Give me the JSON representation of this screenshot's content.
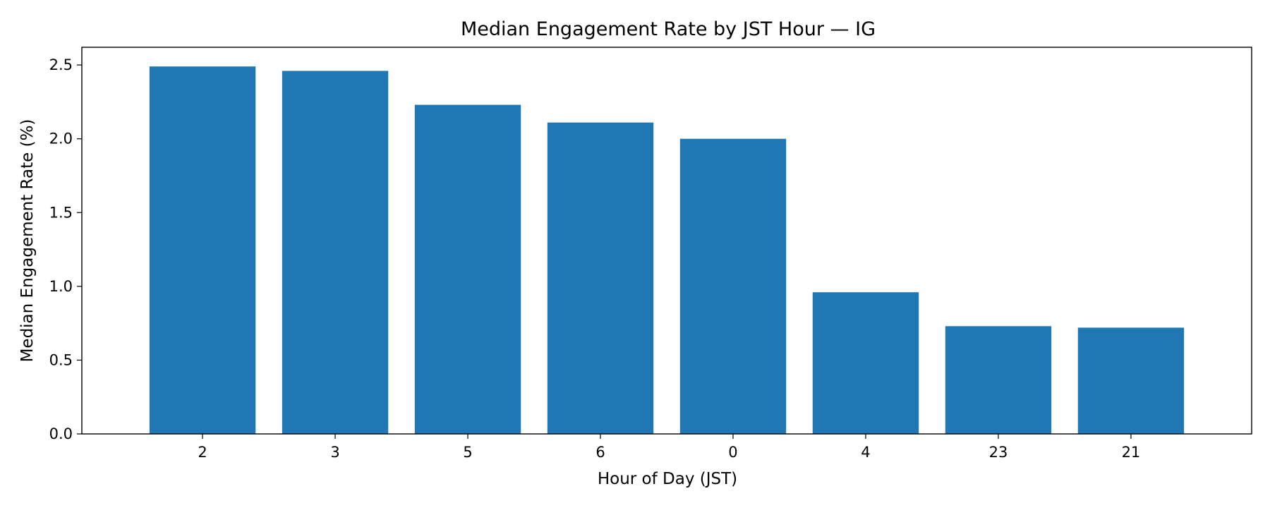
{
  "chart_data": {
    "type": "bar",
    "title": "Median Engagement Rate by JST Hour — IG",
    "xlabel": "Hour of Day (JST)",
    "ylabel": "Median Engagement Rate (%)",
    "categories": [
      "2",
      "3",
      "5",
      "6",
      "0",
      "4",
      "23",
      "21"
    ],
    "values": [
      2.49,
      2.46,
      2.23,
      2.11,
      2.0,
      0.96,
      0.73,
      0.72
    ],
    "ylim": [
      0,
      2.62
    ],
    "yticks": [
      0.0,
      0.5,
      1.0,
      1.5,
      2.0,
      2.5
    ],
    "ytick_labels": [
      "0.0",
      "0.5",
      "1.0",
      "1.5",
      "2.0",
      "2.5"
    ],
    "bar_color": "#1f77b4",
    "grid": false,
    "legend": "none"
  }
}
